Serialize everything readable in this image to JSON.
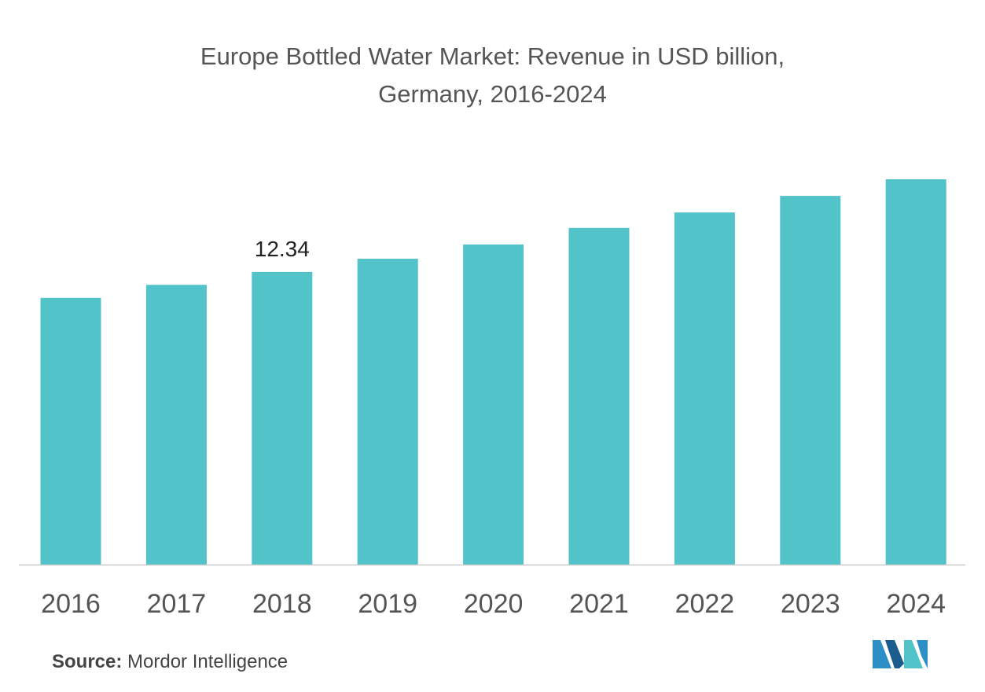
{
  "title_line1": "Europe Bottled Water Market: Revenue in USD billion,",
  "title_line2": "Germany, 2016-2024",
  "source_label": "Source:",
  "source_text": "Mordor Intelligence",
  "colors": {
    "bar": "#52C3C9",
    "axis": "#cccccc",
    "tick_text": "#555555",
    "label_text": "#222222"
  },
  "chart_data": {
    "type": "bar",
    "title": "Europe Bottled Water Market: Revenue in USD billion, Germany, 2016-2024",
    "categories": [
      "2016",
      "2017",
      "2018",
      "2019",
      "2020",
      "2021",
      "2022",
      "2023",
      "2024"
    ],
    "values": [
      11.25,
      11.8,
      12.34,
      12.9,
      13.5,
      14.2,
      14.85,
      15.55,
      16.25
    ],
    "data_labels": [
      null,
      null,
      "12.34",
      null,
      null,
      null,
      null,
      null,
      null
    ],
    "ylim": [
      0,
      16.25
    ],
    "grid": false,
    "legend": "none"
  }
}
